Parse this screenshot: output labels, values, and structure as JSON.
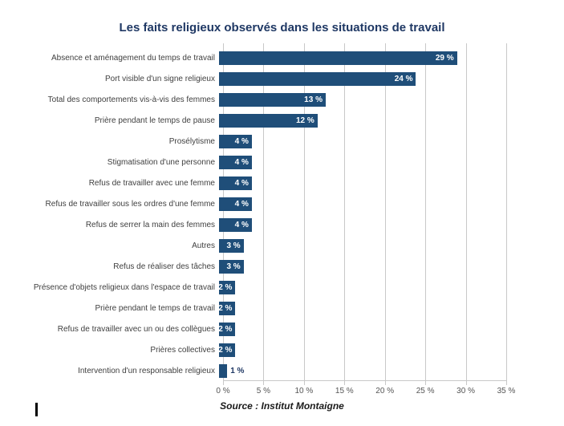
{
  "chart_data": {
    "type": "bar",
    "orientation": "horizontal",
    "title": "Les faits religieux observés dans les situations de travail",
    "categories": [
      "Absence et aménagement du temps de travail",
      "Port visible d'un signe religieux",
      "Total des comportements vis-à-vis des femmes",
      "Prière pendant le temps de pause",
      "Prosélytisme",
      "Stigmatisation d'une personne",
      "Refus de travailler avec une femme",
      "Refus de travailler sous les ordres d'une femme",
      "Refus de serrer la main des femmes",
      "Autres",
      "Refus de réaliser des tâches",
      "Présence d'objets religieux dans l'espace de travail",
      "Prière pendant le temps de travail",
      "Refus de travailler avec un ou des collègues",
      "Prières collectives",
      "Intervention d'un responsable religieux"
    ],
    "values": [
      29,
      24,
      13,
      12,
      4,
      4,
      4,
      4,
      4,
      3,
      3,
      2,
      2,
      2,
      2,
      1
    ],
    "value_suffix": " %",
    "inside_label_min": 2,
    "xlim": [
      0,
      35
    ],
    "xticks": [
      0,
      5,
      10,
      15,
      20,
      25,
      30,
      35
    ],
    "xtick_labels": [
      "0 %",
      "5 %",
      "10 %",
      "15 %",
      "20 %",
      "25 %",
      "30 %",
      "35 %"
    ],
    "bar_color": "#1F4E79",
    "title_color": "#1F3864",
    "grid": true,
    "legend": "none",
    "value_label_inside_color": "#FFFFFF",
    "value_label_outside_color": "#1F3864"
  },
  "source": {
    "text": "Source : Institut Montaigne"
  }
}
